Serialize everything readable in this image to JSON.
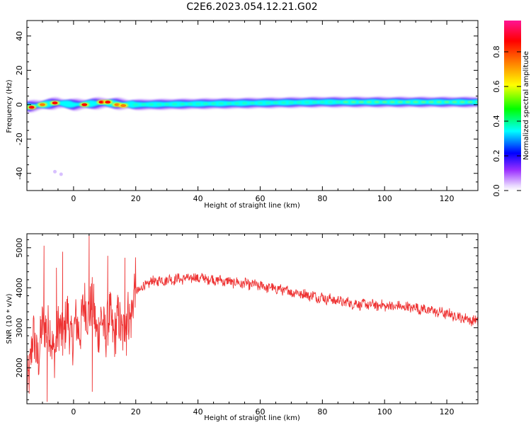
{
  "title": "C2E6.2023.054.12.21.G02",
  "chart_data": [
    {
      "type": "heatmap",
      "xlabel": "Height of straight line (km)",
      "ylabel": "Frequency (Hz)",
      "xlim": [
        -15,
        130
      ],
      "ylim": [
        -50,
        49
      ],
      "x_ticks": [
        0,
        20,
        40,
        60,
        80,
        100,
        120
      ],
      "y_ticks": [
        -40,
        -20,
        0,
        20,
        40
      ],
      "grid": false,
      "colorbar": {
        "label": "Normalized spectral amplitude",
        "range": [
          0,
          0.98
        ],
        "ticks": [
          0.0,
          0.2,
          0.4,
          0.6,
          0.8
        ],
        "colors": [
          "#ffffff",
          "#9b30ff",
          "#0000ff",
          "#00ffff",
          "#00ff00",
          "#ffff00",
          "#ff8000",
          "#ff0000",
          "#ff1493"
        ]
      },
      "band": {
        "center_frequency_hz": [
          [
            -14,
            -1
          ],
          [
            -10,
            0
          ],
          [
            -5,
            1
          ],
          [
            0,
            0
          ],
          [
            5,
            0.5
          ],
          [
            10,
            1
          ],
          [
            15,
            0.5
          ],
          [
            20,
            0
          ],
          [
            40,
            0.5
          ],
          [
            60,
            1
          ],
          [
            80,
            1.5
          ],
          [
            100,
            1.5
          ],
          [
            130,
            1.5
          ]
        ],
        "peaks": [
          {
            "x": -13.5,
            "y": -1.5,
            "amp": 0.9
          },
          {
            "x": -10,
            "y": 0,
            "amp": 0.85
          },
          {
            "x": -6,
            "y": 1,
            "amp": 0.95
          },
          {
            "x": 3.5,
            "y": 0,
            "amp": 0.9
          },
          {
            "x": 9,
            "y": 1.5,
            "amp": 0.92
          },
          {
            "x": 11,
            "y": 1.5,
            "amp": 0.92
          },
          {
            "x": 14,
            "y": 0,
            "amp": 0.8
          },
          {
            "x": 16,
            "y": -0.5,
            "amp": 0.85
          }
        ]
      },
      "isolated_points": [
        {
          "x": -6,
          "y": -39,
          "amp": 0.1
        },
        {
          "x": -4,
          "y": -40.5,
          "amp": 0.08
        }
      ]
    },
    {
      "type": "line",
      "xlabel": "Height of straight line (km)",
      "ylabel": "SNR (10 * v/v)",
      "xlim": [
        -15,
        130
      ],
      "ylim": [
        1100,
        5350
      ],
      "x_ticks": [
        0,
        20,
        40,
        60,
        80,
        100,
        120
      ],
      "y_ticks": [
        2000,
        3000,
        4000,
        5000
      ],
      "grid": false,
      "series": [
        {
          "color": "#ee3333",
          "trend": [
            [
              -15,
              1700
            ],
            [
              -13,
              2600
            ],
            [
              -11,
              2400
            ],
            [
              -9,
              3300
            ],
            [
              -7,
              2500
            ],
            [
              -4,
              2900
            ],
            [
              -2,
              3100
            ],
            [
              0,
              2800
            ],
            [
              3,
              3300
            ],
            [
              5,
              3600
            ],
            [
              8,
              3000
            ],
            [
              11,
              3100
            ],
            [
              14,
              3000
            ],
            [
              17,
              3100
            ],
            [
              20,
              3900
            ],
            [
              25,
              4150
            ],
            [
              30,
              4200
            ],
            [
              40,
              4250
            ],
            [
              50,
              4150
            ],
            [
              60,
              4050
            ],
            [
              70,
              3900
            ],
            [
              80,
              3750
            ],
            [
              90,
              3600
            ],
            [
              100,
              3550
            ],
            [
              110,
              3500
            ],
            [
              120,
              3350
            ],
            [
              130,
              3150
            ]
          ],
          "extremes": [
            {
              "x": -9.5,
              "y": 5050
            },
            {
              "x": -8.5,
              "y": 1150
            },
            {
              "x": -5.5,
              "y": 4500
            },
            {
              "x": -3.5,
              "y": 4900
            },
            {
              "x": 5,
              "y": 5300
            },
            {
              "x": 6,
              "y": 1400
            },
            {
              "x": 11,
              "y": 4800
            },
            {
              "x": 16.5,
              "y": 4750
            },
            {
              "x": 17,
              "y": 2300
            }
          ]
        }
      ]
    }
  ]
}
